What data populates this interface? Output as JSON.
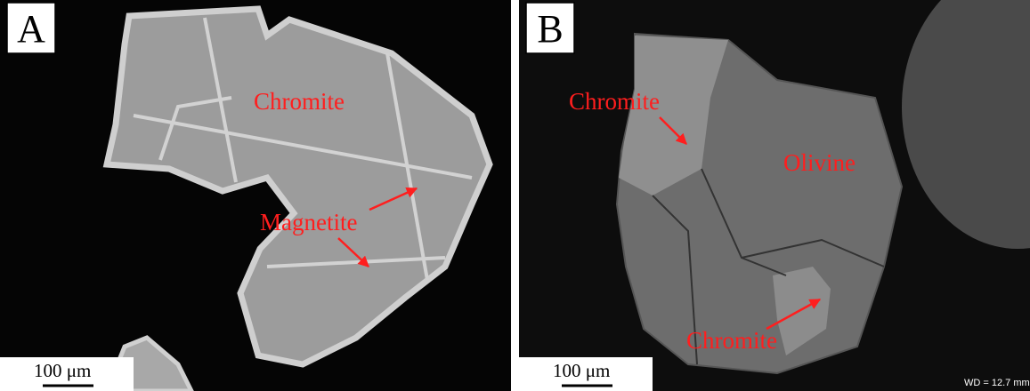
{
  "panels": [
    {
      "label": "A",
      "annotations": [
        "Chromite",
        "Magnetite"
      ],
      "scale_bar": "100 μm"
    },
    {
      "label": "B",
      "annotations": [
        "Chromite",
        "Olivine",
        "Chromite"
      ],
      "scale_bar": "100 μm",
      "info": "WD = 12.7 mm"
    }
  ]
}
